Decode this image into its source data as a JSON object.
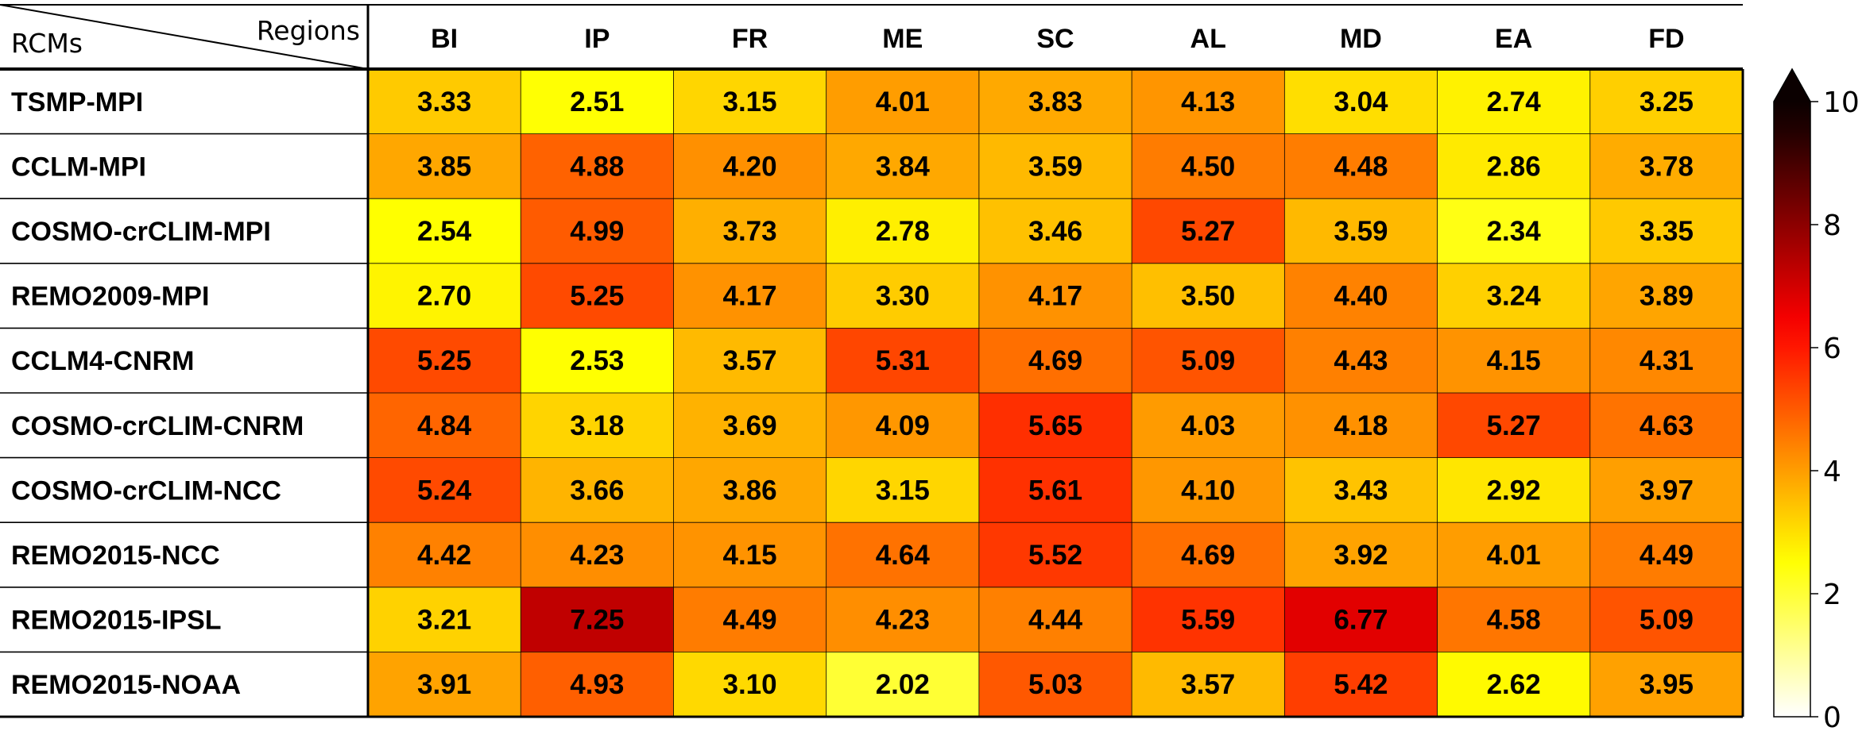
{
  "chart_data": {
    "type": "heatmap",
    "corner_row_label": "RCMs",
    "corner_col_label": "Regions",
    "columns": [
      "BI",
      "IP",
      "FR",
      "ME",
      "SC",
      "AL",
      "MD",
      "EA",
      "FD"
    ],
    "rows": [
      "TSMP-MPI",
      "CCLM-MPI",
      "COSMO-crCLIM-MPI",
      "REMO2009-MPI",
      "CCLM4-CNRM",
      "COSMO-crCLIM-CNRM",
      "COSMO-crCLIM-NCC",
      "REMO2015-NCC",
      "REMO2015-IPSL",
      "REMO2015-NOAA"
    ],
    "values": [
      [
        "3.33",
        "2.51",
        "3.15",
        "4.01",
        "3.83",
        "4.13",
        "3.04",
        "2.74",
        "3.25"
      ],
      [
        "3.85",
        "4.88",
        "4.20",
        "3.84",
        "3.59",
        "4.50",
        "4.48",
        "2.86",
        "3.78"
      ],
      [
        "2.54",
        "4.99",
        "3.73",
        "2.78",
        "3.46",
        "5.27",
        "3.59",
        "2.34",
        "3.35"
      ],
      [
        "2.70",
        "5.25",
        "4.17",
        "3.30",
        "4.17",
        "3.50",
        "4.40",
        "3.24",
        "3.89"
      ],
      [
        "5.25",
        "2.53",
        "3.57",
        "5.31",
        "4.69",
        "5.09",
        "4.43",
        "4.15",
        "4.31"
      ],
      [
        "4.84",
        "3.18",
        "3.69",
        "4.09",
        "5.65",
        "4.03",
        "4.18",
        "5.27",
        "4.63"
      ],
      [
        "5.24",
        "3.66",
        "3.86",
        "3.15",
        "5.61",
        "4.10",
        "3.43",
        "2.92",
        "3.97"
      ],
      [
        "4.42",
        "4.23",
        "4.15",
        "4.64",
        "5.52",
        "4.69",
        "3.92",
        "4.01",
        "4.49"
      ],
      [
        "3.21",
        "7.25",
        "4.49",
        "4.23",
        "4.44",
        "5.59",
        "6.77",
        "4.58",
        "5.09"
      ],
      [
        "3.91",
        "4.93",
        "3.10",
        "2.02",
        "5.03",
        "3.57",
        "5.42",
        "2.62",
        "3.95"
      ]
    ],
    "colormap": "hot_r",
    "vmin": 0,
    "vmax": 10,
    "colorbar_ticks": [
      "0",
      "2",
      "4",
      "6",
      "8",
      "10"
    ],
    "colorbar_extend": "max"
  }
}
